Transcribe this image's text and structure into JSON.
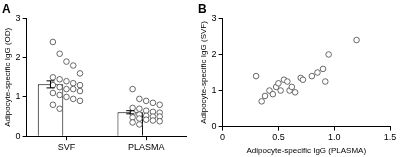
{
  "chart_data": [
    {
      "type": "bar",
      "title": "A",
      "y_label": "Adipocyte-specific IgG (OD)",
      "categories": [
        "SVF",
        "PLASMA"
      ],
      "values": [
        1.32,
        0.61
      ],
      "error": [
        0.09,
        0.04
      ],
      "points": [
        [
          2.4,
          2.1,
          1.9,
          1.8,
          1.6,
          1.5,
          1.45,
          1.4,
          1.35,
          1.3,
          1.3,
          1.25,
          1.2,
          1.2,
          1.15,
          1.1,
          1.05,
          1.0,
          0.95,
          0.9,
          0.8,
          0.7
        ],
        [
          1.2,
          0.95,
          0.9,
          0.85,
          0.8,
          0.72,
          0.7,
          0.65,
          0.62,
          0.6,
          0.58,
          0.55,
          0.52,
          0.5,
          0.5,
          0.48,
          0.45,
          0.42,
          0.4,
          0.38,
          0.35,
          0.3
        ]
      ],
      "color": "#ffffff",
      "marker": "circle",
      "ylim": [
        0,
        3
      ],
      "yticks": [
        0,
        1,
        2,
        3
      ],
      "grid": false
    },
    {
      "type": "scatter",
      "title": "B",
      "x_label": "Adipocyte-specific IgG (PLASMA)",
      "y_label": "Adipocyte-specific IgG (SVF)",
      "x": [
        0.3,
        0.35,
        0.38,
        0.42,
        0.45,
        0.48,
        0.5,
        0.52,
        0.55,
        0.58,
        0.6,
        0.62,
        0.65,
        0.7,
        0.72,
        0.8,
        0.85,
        0.9,
        0.92,
        0.95,
        1.2
      ],
      "values": [
        1.4,
        0.7,
        0.85,
        1.0,
        0.9,
        1.1,
        1.2,
        1.0,
        1.3,
        1.25,
        1.0,
        1.1,
        0.95,
        1.35,
        1.3,
        1.4,
        1.5,
        1.6,
        1.25,
        2.0,
        2.4
      ],
      "color": "#ffffff",
      "marker": "circle",
      "xlim": [
        0,
        1.5
      ],
      "xticks": [
        0,
        0.5,
        {
          "value": 1,
          "label": "1.0"
        },
        1.5
      ],
      "ylim": [
        0,
        3
      ],
      "yticks": [
        0,
        1,
        2,
        3
      ],
      "grid": false
    }
  ]
}
